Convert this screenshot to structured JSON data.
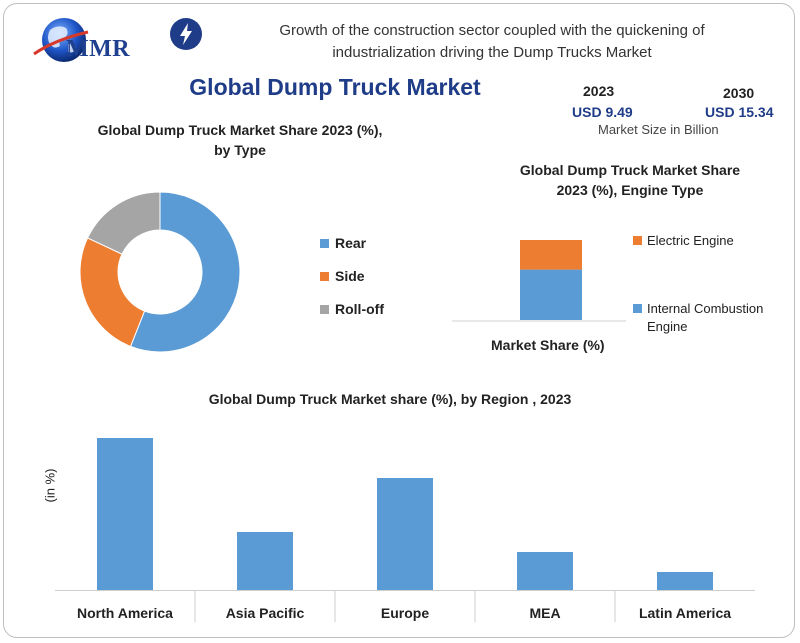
{
  "header": {
    "logo_text": "MMR",
    "headline_line1": "Growth of the construction sector coupled with the quickening of",
    "headline_line2": "industrialization driving the Dump Trucks Market",
    "main_title": "Global Dump Truck Market"
  },
  "market_size": {
    "year_start": "2023",
    "value_start": "USD 9.49",
    "year_end": "2030",
    "value_end": "USD 15.34",
    "unit": "Market Size in Billion"
  },
  "colors": {
    "blue": "#5b9bd5",
    "orange": "#ed7d31",
    "gray": "#a5a5a5",
    "title_blue": "#1f3c88"
  },
  "icons": [
    "globe-icon",
    "lightning-bolt-icon"
  ],
  "chart_data": [
    {
      "type": "pie",
      "variant": "donut",
      "title_line1": "Global Dump Truck Market Share 2023 (%),",
      "title_line2": "by Type",
      "labels": [
        "Rear",
        "Side",
        "Roll-off"
      ],
      "values": [
        56,
        26,
        18
      ],
      "colors": [
        "#5b9bd5",
        "#ed7d31",
        "#a5a5a5"
      ],
      "legend": "right"
    },
    {
      "type": "bar",
      "stacked": true,
      "title_line1": "Global  Dump Truck Market Share",
      "title_line2": "2023 (%), Engine Type",
      "xlabel": "Market Share (%)",
      "series": [
        {
          "name": "Internal Combustion Engine",
          "name_line1": "Internal Combustion",
          "name_line2": "Engine",
          "values": [
            63
          ],
          "color": "#5b9bd5"
        },
        {
          "name": "Electric Engine",
          "values": [
            37
          ],
          "color": "#ed7d31"
        }
      ],
      "legend": "right"
    },
    {
      "type": "bar",
      "title": "Global Dump Truck Market share (%), by Region , 2023",
      "ylabel": "(in %)",
      "categories": [
        "North America",
        "Asia Pacific",
        "Europe",
        "MEA",
        "Latin America"
      ],
      "values": [
        38,
        14.5,
        28,
        9.5,
        4.5
      ],
      "ylim": [
        0,
        40
      ],
      "color": "#5b9bd5"
    }
  ]
}
